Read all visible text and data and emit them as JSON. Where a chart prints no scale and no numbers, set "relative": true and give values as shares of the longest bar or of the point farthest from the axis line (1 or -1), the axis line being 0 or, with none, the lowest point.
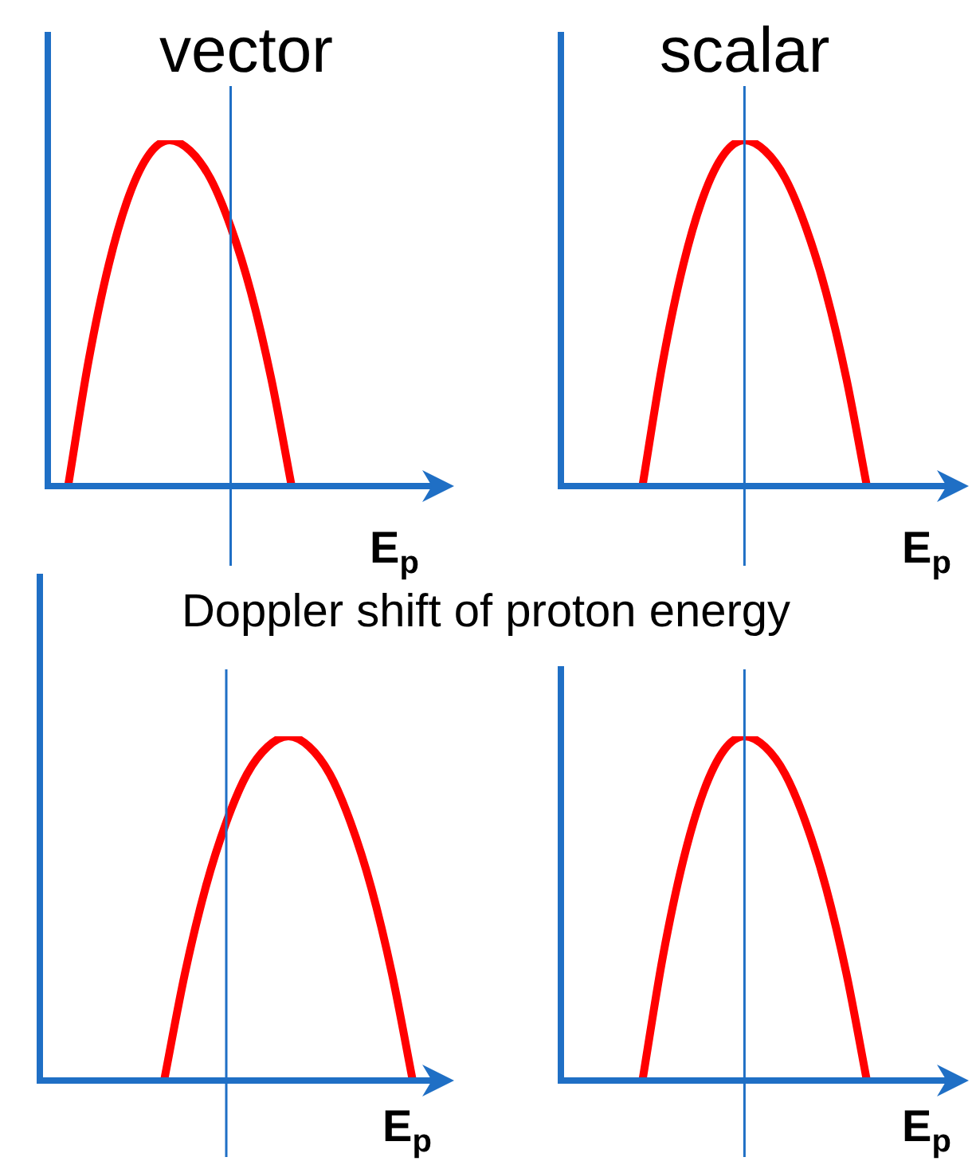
{
  "chart_data": [
    {
      "type": "line",
      "title": "vector",
      "xlabel": "E$_{p}$",
      "relative": true,
      "legend": false,
      "annotations": [
        "Doppler shift of proton energy"
      ],
      "categories": [
        null,
        null,
        null,
        null,
        null,
        null,
        null,
        null,
        null,
        null,
        null,
        null,
        null,
        null,
        null,
        null,
        null,
        null,
        null,
        null,
        null
      ],
      "series": [
        {
          "color": "#ff0000",
          "values": [
            null,
            0,
            0.36,
            0.64,
            0.84,
            0.96,
            1,
            0.97,
            0.89,
            0.75,
            0.56,
            0.31,
            0,
            null,
            null,
            null,
            null,
            null,
            null,
            null,
            null
          ]
        }
      ]
    },
    {
      "type": "line",
      "title": "scalar",
      "xlabel": "E$_{p}$",
      "relative": true,
      "legend": false,
      "categories": [
        null,
        null,
        null,
        null,
        null,
        null,
        null,
        null,
        null,
        null,
        null,
        null,
        null,
        null,
        null,
        null,
        null,
        null,
        null,
        null,
        null
      ],
      "series": [
        {
          "color": "#ff0000",
          "values": [
            null,
            null,
            null,
            null,
            0,
            0.36,
            0.64,
            0.84,
            0.96,
            1,
            0.97,
            0.89,
            0.75,
            0.56,
            0.31,
            0,
            null,
            null,
            null,
            null,
            null
          ]
        }
      ]
    },
    {
      "type": "line",
      "xlabel": "E$_{p}$",
      "relative": true,
      "legend": false,
      "categories": [
        null,
        null,
        null,
        null,
        null,
        null,
        null,
        null,
        null,
        null,
        null,
        null,
        null,
        null,
        null,
        null,
        null,
        null,
        null,
        null,
        null
      ],
      "series": [
        {
          "color": "#ff0000",
          "values": [
            null,
            null,
            null,
            null,
            null,
            null,
            0,
            0.31,
            0.56,
            0.75,
            0.89,
            0.97,
            1,
            0.97,
            0.89,
            0.75,
            0.56,
            0.31,
            0,
            null,
            null
          ]
        }
      ]
    },
    {
      "type": "line",
      "xlabel": "E$_{p}$",
      "relative": true,
      "legend": false,
      "categories": [
        null,
        null,
        null,
        null,
        null,
        null,
        null,
        null,
        null,
        null,
        null,
        null,
        null,
        null,
        null,
        null,
        null,
        null,
        null,
        null,
        null
      ],
      "series": [
        {
          "color": "#ff0000",
          "values": [
            null,
            null,
            null,
            null,
            0,
            0.36,
            0.64,
            0.84,
            0.96,
            1,
            0.97,
            0.89,
            0.75,
            0.56,
            0.31,
            0,
            null,
            null,
            null,
            null,
            null
          ]
        }
      ]
    }
  ]
}
